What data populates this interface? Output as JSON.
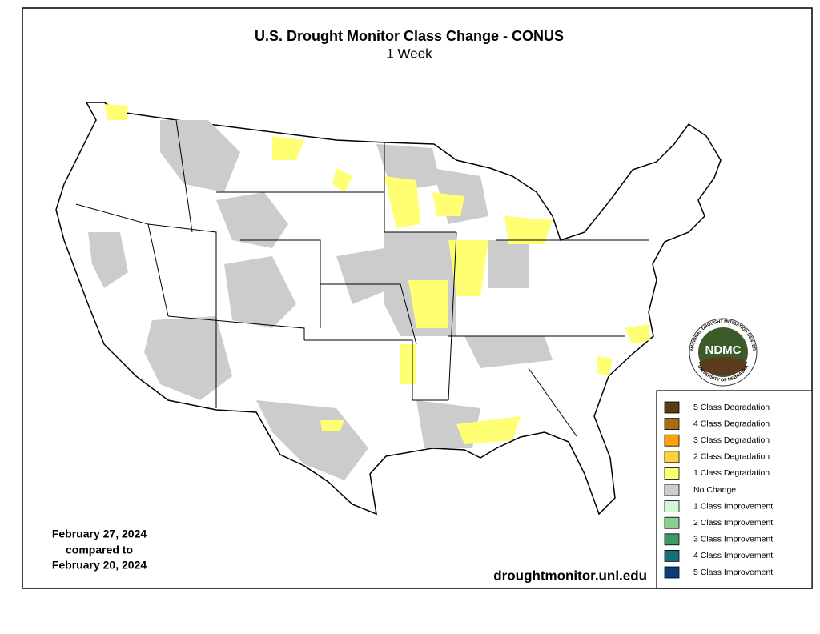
{
  "header": {
    "title": "U.S. Drought Monitor Class Change - CONUS",
    "subtitle": "1 Week"
  },
  "dates": [
    "February 27, 2024",
    "compared to",
    "February 20, 2024"
  ],
  "source": "droughtmonitor.unl.edu",
  "logo": {
    "label": "NDMC",
    "ring_top": "NATIONAL DROUGHT MITIGATION CENTER",
    "ring_bottom": "UNIVERSITY OF NEBRASKA"
  },
  "legend": [
    {
      "label": "5 Class Degradation",
      "color": "#5a3a10"
    },
    {
      "label": "4 Class Degradation",
      "color": "#a86c12"
    },
    {
      "label": "3 Class Degradation",
      "color": "#ffa20a"
    },
    {
      "label": "2 Class Degradation",
      "color": "#ffd03a"
    },
    {
      "label": "1 Class Degradation",
      "color": "#ffff73"
    },
    {
      "label": "No Change",
      "color": "#cccccc"
    },
    {
      "label": "1 Class Improvement",
      "color": "#d6f5d6"
    },
    {
      "label": "2 Class Improvement",
      "color": "#88d08c"
    },
    {
      "label": "3 Class Improvement",
      "color": "#3c9a62"
    },
    {
      "label": "4 Class Improvement",
      "color": "#11707a"
    },
    {
      "label": "5 Class Improvement",
      "color": "#0a3e78"
    }
  ]
}
